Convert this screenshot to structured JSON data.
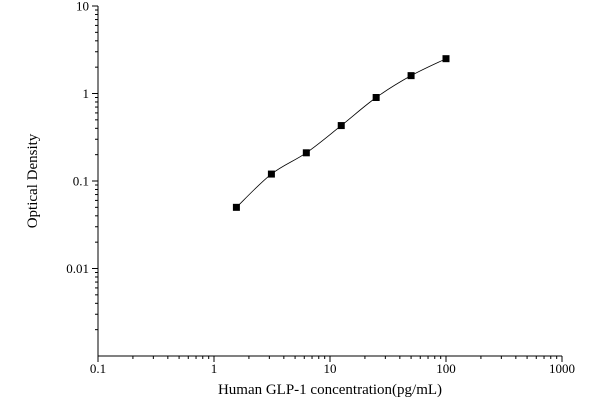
{
  "chart_data": {
    "type": "scatter",
    "title": "",
    "xlabel": "Human GLP-1 concentration(pg/mL)",
    "ylabel": "Optical Density",
    "x_scale": "log",
    "y_scale": "log",
    "xlim": [
      0.1,
      1000
    ],
    "ylim": [
      0.001,
      10
    ],
    "x_ticks": [
      0.1,
      1,
      10,
      100,
      1000
    ],
    "x_tick_labels": [
      "0.1",
      "1",
      "10",
      "100",
      "1000"
    ],
    "y_ticks": [
      0.01,
      0.1,
      1,
      10
    ],
    "y_tick_labels": [
      "0.01",
      "0.1",
      "1",
      "10"
    ],
    "grid": false,
    "legend": "none",
    "series": [
      {
        "x": [
          1.56,
          3.125,
          6.25,
          12.5,
          25,
          50,
          100
        ],
        "y": [
          0.05,
          0.12,
          0.21,
          0.43,
          0.9,
          1.6,
          2.5
        ],
        "marker": "square",
        "fit_line": true,
        "color": "#000000"
      }
    ]
  }
}
